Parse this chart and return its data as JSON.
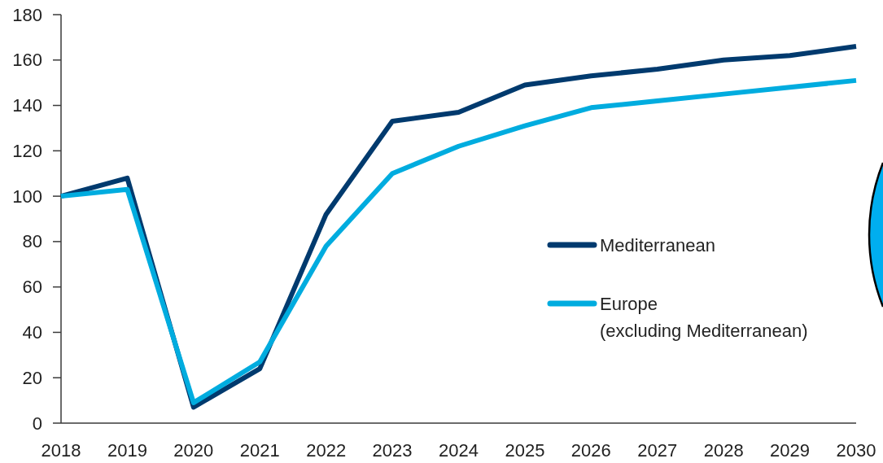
{
  "chart_data": {
    "type": "line",
    "x": [
      2018,
      2019,
      2020,
      2021,
      2022,
      2023,
      2024,
      2025,
      2026,
      2027,
      2028,
      2029,
      2030
    ],
    "xlim": [
      2018,
      2030
    ],
    "xticks": [
      2018,
      2019,
      2020,
      2021,
      2022,
      2023,
      2024,
      2025,
      2026,
      2027,
      2028,
      2029,
      2030
    ],
    "ylim": [
      0,
      180
    ],
    "yticks": [
      0,
      20,
      40,
      60,
      80,
      100,
      120,
      140,
      160,
      180
    ],
    "legend": "right",
    "series": [
      {
        "name": "Mediterranean",
        "color": "#003a6e",
        "values": [
          100,
          108,
          7,
          24,
          92,
          133,
          137,
          149,
          153,
          156,
          160,
          162,
          166
        ]
      },
      {
        "name": "Europe\n(excluding Mediterranean)",
        "color": "#00acdf",
        "values": [
          100,
          103,
          9,
          27,
          78,
          110,
          122,
          131,
          139,
          142,
          145,
          148,
          151
        ]
      }
    ]
  }
}
